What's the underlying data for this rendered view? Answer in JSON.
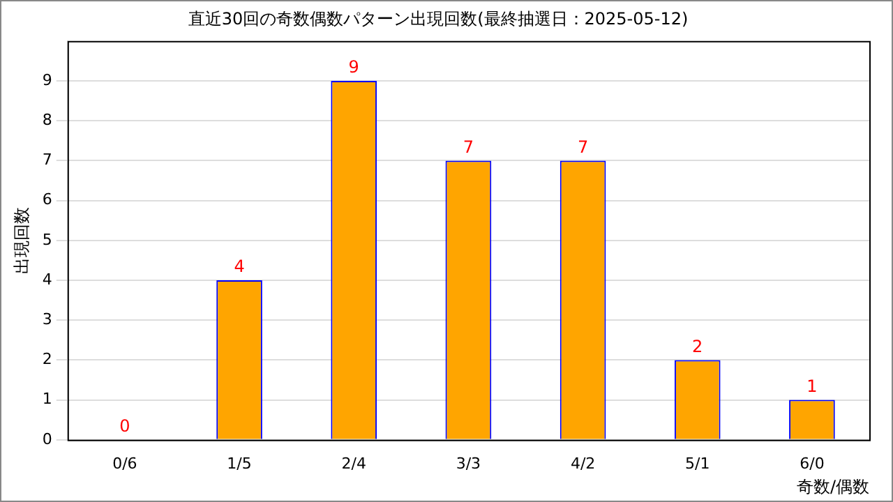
{
  "chart_data": {
    "type": "bar",
    "title": "直近30回の奇数偶数パターン出現回数(最終抽選日：2025-05-12)",
    "xlabel": "奇数/偶数",
    "ylabel": "出現回数",
    "categories": [
      "0/6",
      "1/5",
      "2/4",
      "3/3",
      "4/2",
      "5/1",
      "6/0"
    ],
    "series": [
      {
        "color": "#ffa500",
        "values": [
          0,
          4,
          9,
          7,
          7,
          2,
          1
        ]
      }
    ],
    "ylim": [
      0,
      10
    ],
    "yticks": [
      0,
      1,
      2,
      3,
      4,
      5,
      6,
      7,
      8,
      9
    ],
    "grid": "y",
    "legend": false,
    "data_labels": true
  }
}
